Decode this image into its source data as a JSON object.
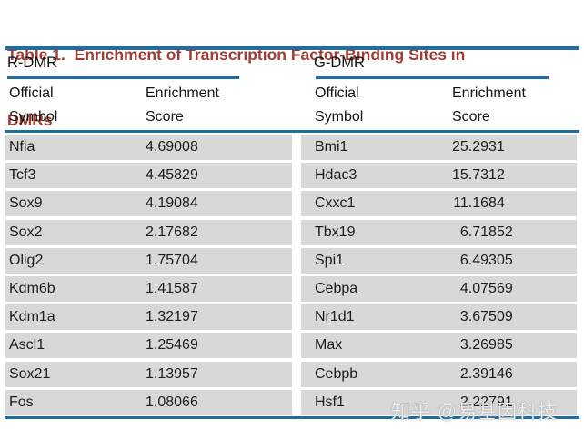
{
  "table": {
    "title": {
      "line1": "Table 1.  Enrichment of Transcription Factor-Binding Sites in",
      "line2": "DMRs",
      "full": "Table 1. Enrichment of Transcription Factor-Binding Sites in DMRs"
    },
    "col_headers": [
      {
        "l1": "Official",
        "l2": "Symbol"
      },
      {
        "l1": "Enrichment",
        "l2": "Score"
      }
    ],
    "groups": [
      {
        "name": "R-DMR",
        "rows": [
          {
            "symbol": "Nfia",
            "score": "4.69008"
          },
          {
            "symbol": "Tcf3",
            "score": "4.45829"
          },
          {
            "symbol": "Sox9",
            "score": "4.19084"
          },
          {
            "symbol": "Sox2",
            "score": "2.17682"
          },
          {
            "symbol": "Olig2",
            "score": "1.75704"
          },
          {
            "symbol": "Kdm6b",
            "score": "1.41587"
          },
          {
            "symbol": "Kdm1a",
            "score": "1.32197"
          },
          {
            "symbol": "Ascl1",
            "score": "1.25469"
          },
          {
            "symbol": "Sox21",
            "score": "1.13957"
          },
          {
            "symbol": "Fos",
            "score": "1.08066"
          }
        ]
      },
      {
        "name": "G-DMR",
        "rows": [
          {
            "symbol": "Bmi1",
            "score": "25.2931"
          },
          {
            "symbol": "Hdac3",
            "score": "15.7312"
          },
          {
            "symbol": "Cxxc1",
            "score": "11.1684"
          },
          {
            "symbol": "Tbx19",
            "score": "6.71852"
          },
          {
            "symbol": "Spi1",
            "score": "6.49305"
          },
          {
            "symbol": "Cebpa",
            "score": "4.07569"
          },
          {
            "symbol": "Nr1d1",
            "score": "3.67509"
          },
          {
            "symbol": "Max",
            "score": "3.26985"
          },
          {
            "symbol": "Cebpb",
            "score": "2.39146"
          },
          {
            "symbol": "Hsf1",
            "score": "2.22791"
          }
        ]
      }
    ]
  },
  "chart_data": {
    "type": "table",
    "title": "Table 1. Enrichment of Transcription Factor-Binding Sites in DMRs",
    "columns": [
      "Official Symbol",
      "Enrichment Score"
    ],
    "series": [
      {
        "name": "R-DMR",
        "categories": [
          "Nfia",
          "Tcf3",
          "Sox9",
          "Sox2",
          "Olig2",
          "Kdm6b",
          "Kdm1a",
          "Ascl1",
          "Sox21",
          "Fos"
        ],
        "values": [
          4.69008,
          4.45829,
          4.19084,
          2.17682,
          1.75704,
          1.41587,
          1.32197,
          1.25469,
          1.13957,
          1.08066
        ]
      },
      {
        "name": "G-DMR",
        "categories": [
          "Bmi1",
          "Hdac3",
          "Cxxc1",
          "Tbx19",
          "Spi1",
          "Cebpa",
          "Nr1d1",
          "Max",
          "Cebpb",
          "Hsf1"
        ],
        "values": [
          25.2931,
          15.7312,
          11.1684,
          6.71852,
          6.49305,
          4.07569,
          3.67509,
          3.26985,
          2.39146,
          2.22791
        ]
      }
    ]
  },
  "watermark": "知乎 @易基因科技",
  "colors": {
    "title_red": "#a23b31",
    "rule_blue": "#1f6e9f",
    "row_gray": "#d8d8d8"
  }
}
